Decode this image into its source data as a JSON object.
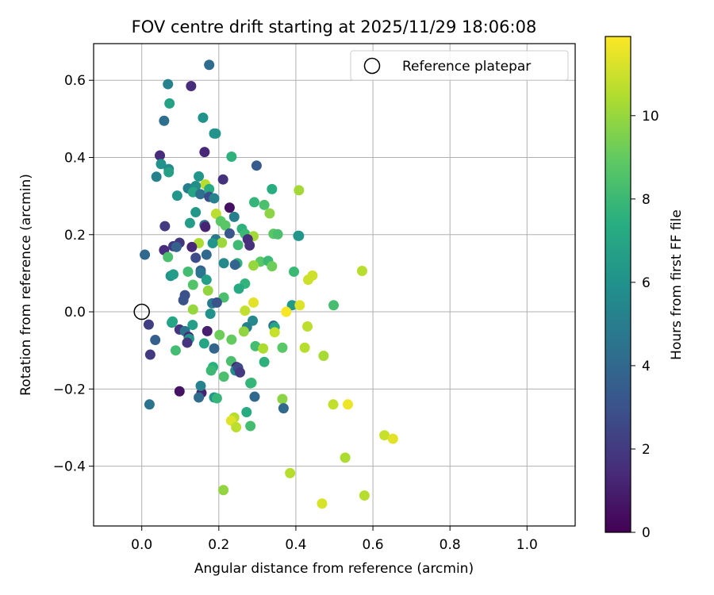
{
  "chart_data": {
    "type": "scatter",
    "title": "FOV centre drift starting at 2025/11/29 18:06:08",
    "xlabel": "Angular distance from reference (arcmin)",
    "ylabel": "Rotation from reference (arcmin)",
    "xlim": [
      -0.125,
      1.125
    ],
    "ylim": [
      -0.555,
      0.695
    ],
    "xticks": [
      0.0,
      0.2,
      0.4,
      0.6,
      0.8,
      1.0
    ],
    "xtick_labels": [
      "0.0",
      "0.2",
      "0.4",
      "0.6",
      "0.8",
      "1.0"
    ],
    "yticks": [
      0.6,
      0.4,
      0.2,
      0.0,
      -0.2,
      -0.4
    ],
    "ytick_labels": [
      "0.6",
      "0.4",
      "0.2",
      "0.0",
      "−0.2",
      "−0.4"
    ],
    "grid": true,
    "legend": {
      "position": "top-right",
      "label": "Reference platepar"
    },
    "reference_point": {
      "x": 0.0,
      "y": 0.0
    },
    "colorbar": {
      "label": "Hours from first FF file",
      "colormap": "viridis",
      "range": [
        0,
        11.9
      ],
      "ticks": [
        0,
        2,
        4,
        6,
        8,
        10
      ],
      "tick_labels": [
        "0",
        "2",
        "4",
        "6",
        "8",
        "10"
      ]
    },
    "points": [
      [
        0.175,
        0.64,
        4.2
      ],
      [
        0.068,
        0.59,
        5.2
      ],
      [
        0.128,
        0.585,
        1.5
      ],
      [
        0.072,
        0.54,
        6.8
      ],
      [
        0.058,
        0.495,
        4.3
      ],
      [
        0.159,
        0.503,
        6.0
      ],
      [
        0.188,
        0.462,
        6.0
      ],
      [
        0.192,
        0.462,
        6.1
      ],
      [
        0.047,
        0.405,
        1.5
      ],
      [
        0.163,
        0.414,
        1.3
      ],
      [
        0.233,
        0.402,
        7.6
      ],
      [
        0.298,
        0.379,
        3.4
      ],
      [
        0.05,
        0.383,
        6.0
      ],
      [
        0.07,
        0.37,
        5.6
      ],
      [
        0.07,
        0.362,
        6.7
      ],
      [
        0.038,
        0.35,
        5.2
      ],
      [
        0.148,
        0.351,
        6.2
      ],
      [
        0.211,
        0.343,
        1.7
      ],
      [
        0.165,
        0.33,
        10.6
      ],
      [
        0.338,
        0.318,
        7.4
      ],
      [
        0.408,
        0.315,
        10.2
      ],
      [
        0.12,
        0.32,
        5.1
      ],
      [
        0.14,
        0.326,
        5.8
      ],
      [
        0.133,
        0.31,
        7.0
      ],
      [
        0.175,
        0.318,
        7.3
      ],
      [
        0.092,
        0.301,
        6.2
      ],
      [
        0.152,
        0.305,
        4.4
      ],
      [
        0.175,
        0.298,
        2.8
      ],
      [
        0.188,
        0.294,
        5.3
      ],
      [
        0.292,
        0.284,
        7.8
      ],
      [
        0.318,
        0.277,
        8.4
      ],
      [
        0.228,
        0.27,
        0.5
      ],
      [
        0.332,
        0.255,
        9.8
      ],
      [
        0.14,
        0.258,
        6.3
      ],
      [
        0.193,
        0.254,
        10.7
      ],
      [
        0.24,
        0.246,
        5.1
      ],
      [
        0.205,
        0.235,
        8.8
      ],
      [
        0.125,
        0.23,
        6.5
      ],
      [
        0.163,
        0.225,
        3.9
      ],
      [
        0.217,
        0.224,
        8.8
      ],
      [
        0.06,
        0.222,
        2.0
      ],
      [
        0.165,
        0.22,
        1.2
      ],
      [
        0.26,
        0.215,
        7.6
      ],
      [
        0.268,
        0.202,
        8.0
      ],
      [
        0.228,
        0.203,
        3.2
      ],
      [
        0.29,
        0.196,
        10.2
      ],
      [
        0.342,
        0.202,
        8.8
      ],
      [
        0.353,
        0.201,
        8.4
      ],
      [
        0.406,
        0.197,
        6.4
      ],
      [
        0.408,
        0.197,
        6.2
      ],
      [
        0.275,
        0.188,
        1.5
      ],
      [
        0.192,
        0.188,
        4.7
      ],
      [
        0.208,
        0.179,
        10.1
      ],
      [
        0.148,
        0.178,
        10.4
      ],
      [
        0.098,
        0.179,
        1.9
      ],
      [
        0.184,
        0.178,
        6.2
      ],
      [
        0.082,
        0.17,
        2.0
      ],
      [
        0.13,
        0.168,
        1.3
      ],
      [
        0.25,
        0.173,
        8.1
      ],
      [
        0.28,
        0.172,
        1.6
      ],
      [
        0.09,
        0.168,
        3.7
      ],
      [
        0.058,
        0.16,
        1.5
      ],
      [
        0.008,
        0.148,
        4.0
      ],
      [
        0.168,
        0.148,
        4.0
      ],
      [
        0.068,
        0.142,
        8.4
      ],
      [
        0.14,
        0.14,
        2.7
      ],
      [
        0.248,
        0.126,
        7.7
      ],
      [
        0.213,
        0.126,
        5.6
      ],
      [
        0.308,
        0.13,
        8.8
      ],
      [
        0.328,
        0.132,
        8.0
      ],
      [
        0.29,
        0.12,
        10.0
      ],
      [
        0.338,
        0.118,
        9.2
      ],
      [
        0.242,
        0.122,
        3.8
      ],
      [
        0.12,
        0.104,
        8.2
      ],
      [
        0.153,
        0.107,
        3.8
      ],
      [
        0.153,
        0.1,
        4.6
      ],
      [
        0.395,
        0.104,
        8.0
      ],
      [
        0.443,
        0.094,
        11.0
      ],
      [
        0.572,
        0.106,
        10.6
      ],
      [
        0.075,
        0.093,
        6.0
      ],
      [
        0.082,
        0.097,
        6.5
      ],
      [
        0.432,
        0.083,
        11.0
      ],
      [
        0.168,
        0.083,
        6.6
      ],
      [
        0.133,
        0.07,
        8.6
      ],
      [
        0.268,
        0.073,
        7.7
      ],
      [
        0.172,
        0.055,
        9.9
      ],
      [
        0.252,
        0.06,
        7.2
      ],
      [
        0.112,
        0.043,
        2.9
      ],
      [
        0.108,
        0.03,
        3.0
      ],
      [
        0.213,
        0.037,
        8.4
      ],
      [
        0.29,
        0.024,
        11.4
      ],
      [
        0.183,
        0.022,
        4.8
      ],
      [
        0.195,
        0.024,
        3.0
      ],
      [
        0.39,
        0.017,
        6.4
      ],
      [
        0.41,
        0.017,
        11.3
      ],
      [
        0.498,
        0.017,
        8.3
      ],
      [
        0.133,
        0.006,
        10.0
      ],
      [
        0.268,
        0.003,
        10.8
      ],
      [
        0.375,
        0.0,
        11.8
      ],
      [
        0.178,
        -0.005,
        6.0
      ],
      [
        0.018,
        -0.033,
        2.2
      ],
      [
        0.078,
        -0.028,
        6.5
      ],
      [
        0.08,
        -0.025,
        7.0
      ],
      [
        0.132,
        -0.034,
        6.6
      ],
      [
        0.288,
        -0.023,
        5.5
      ],
      [
        0.342,
        -0.036,
        4.0
      ],
      [
        0.345,
        -0.04,
        7.0
      ],
      [
        0.43,
        -0.038,
        10.7
      ],
      [
        0.098,
        -0.046,
        1.8
      ],
      [
        0.112,
        -0.05,
        4.5
      ],
      [
        0.17,
        -0.05,
        1.0
      ],
      [
        0.273,
        -0.04,
        5.2
      ],
      [
        0.345,
        -0.053,
        10.9
      ],
      [
        0.265,
        -0.051,
        9.9
      ],
      [
        0.122,
        -0.065,
        1.3
      ],
      [
        0.035,
        -0.073,
        3.6
      ],
      [
        0.123,
        -0.07,
        6.2
      ],
      [
        0.202,
        -0.06,
        9.2
      ],
      [
        0.118,
        -0.08,
        1.8
      ],
      [
        0.162,
        -0.082,
        7.0
      ],
      [
        0.233,
        -0.072,
        9.0
      ],
      [
        0.295,
        -0.089,
        8.2
      ],
      [
        0.315,
        -0.095,
        10.4
      ],
      [
        0.188,
        -0.095,
        3.8
      ],
      [
        0.365,
        -0.093,
        8.8
      ],
      [
        0.423,
        -0.093,
        10.6
      ],
      [
        0.088,
        -0.1,
        8.2
      ],
      [
        0.022,
        -0.111,
        2.0
      ],
      [
        0.472,
        -0.114,
        10.3
      ],
      [
        0.232,
        -0.128,
        8.4
      ],
      [
        0.318,
        -0.13,
        7.6
      ],
      [
        0.246,
        -0.143,
        1.2
      ],
      [
        0.185,
        -0.143,
        7.5
      ],
      [
        0.18,
        -0.152,
        8.0
      ],
      [
        0.243,
        -0.152,
        5.7
      ],
      [
        0.25,
        -0.145,
        2.7
      ],
      [
        0.255,
        -0.157,
        2.0
      ],
      [
        0.213,
        -0.168,
        8.4
      ],
      [
        0.285,
        -0.184,
        8.2
      ],
      [
        0.282,
        -0.185,
        7.8
      ],
      [
        0.098,
        -0.206,
        0.6
      ],
      [
        0.155,
        -0.21,
        1.2
      ],
      [
        0.153,
        -0.192,
        5.3
      ],
      [
        0.293,
        -0.22,
        4.0
      ],
      [
        0.188,
        -0.222,
        6.2
      ],
      [
        0.148,
        -0.222,
        4.2
      ],
      [
        0.195,
        -0.224,
        7.8
      ],
      [
        0.365,
        -0.226,
        9.8
      ],
      [
        0.02,
        -0.24,
        4.5
      ],
      [
        0.497,
        -0.24,
        10.8
      ],
      [
        0.535,
        -0.24,
        11.6
      ],
      [
        0.368,
        -0.25,
        4.0
      ],
      [
        0.272,
        -0.26,
        7.3
      ],
      [
        0.24,
        -0.274,
        10.6
      ],
      [
        0.232,
        -0.282,
        11.3
      ],
      [
        0.245,
        -0.299,
        10.7
      ],
      [
        0.282,
        -0.296,
        8.2
      ],
      [
        0.63,
        -0.32,
        10.9
      ],
      [
        0.652,
        -0.329,
        11.4
      ],
      [
        0.528,
        -0.378,
        10.4
      ],
      [
        0.385,
        -0.418,
        10.6
      ],
      [
        0.212,
        -0.462,
        9.9
      ],
      [
        0.578,
        -0.476,
        10.6
      ],
      [
        0.468,
        -0.497,
        11.2
      ]
    ]
  }
}
